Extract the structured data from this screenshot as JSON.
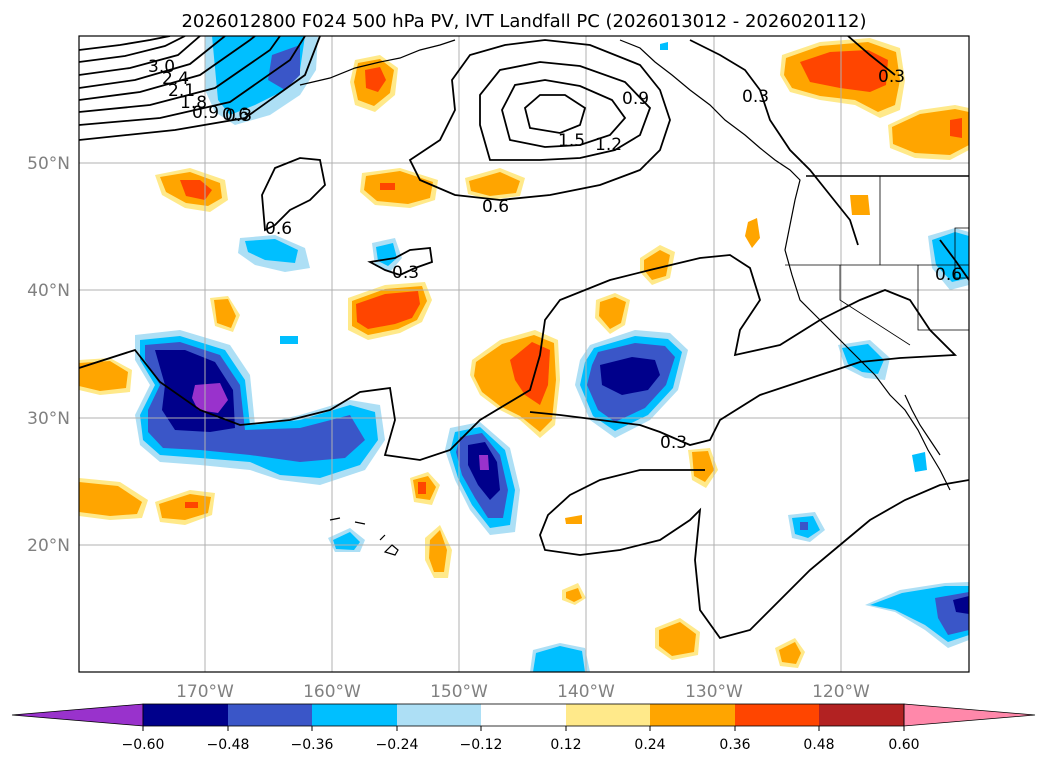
{
  "title": "2026012800 F024 500 hPa PV, IVT Landfall PC (2026013012 - 2026020112)",
  "colors": {
    "n_060_plus": "#9932CC",
    "n_048_060": "#00008B",
    "n_036_048": "#3A56C8",
    "n_024_036": "#00BFFF",
    "n_012_024": "#ADDFF5",
    "neutral": "#FFFFFF",
    "p_012_024": "#FFE98A",
    "p_024_036": "#FFA500",
    "p_036_048": "#FF4500",
    "p_048_060": "#B22222",
    "p_060_plus": "#FF88AA",
    "contour": "#000000",
    "grid": "#B0B0B0",
    "axis_label": "#808080"
  },
  "map": {
    "lat_labels": [
      "50°N",
      "40°N",
      "30°N",
      "20°N"
    ],
    "lon_labels": [
      "170°W",
      "160°W",
      "150°W",
      "140°W",
      "130°W",
      "120°W"
    ],
    "lon_range": [
      -180,
      -110
    ],
    "lat_range": [
      10,
      60
    ],
    "contour_labels": [
      "3.0",
      "2.4",
      "2.1",
      "1.8",
      "0.9",
      "0.6",
      "0.3",
      "1.5",
      "1.2",
      "0.9",
      "0.6",
      "0.3",
      "0.6",
      "0.3",
      "0.3",
      "0.3",
      "0.6"
    ]
  },
  "colorbar": {
    "ticks": [
      "−0.60",
      "−0.48",
      "−0.36",
      "−0.24",
      "−0.12",
      "0.12",
      "0.24",
      "0.36",
      "0.48",
      "0.60"
    ],
    "extend": "both"
  }
}
